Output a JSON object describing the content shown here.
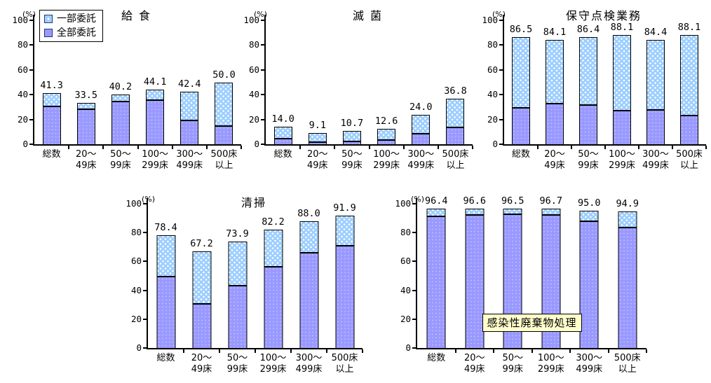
{
  "figure": {
    "background": "#FFFFFF"
  },
  "colors": {
    "partial_fill": "#9DCEFF",
    "full_fill": "#9999FF",
    "axis": "#000000",
    "label_box_fill": "#FFFFCC"
  },
  "legend": {
    "items": [
      {
        "label": "一部委託",
        "swatch_color": "#9DCEFF",
        "pattern": "white-dots"
      },
      {
        "label": "全部委託",
        "swatch_color": "#9999FF",
        "pattern": "solid"
      }
    ]
  },
  "chart_data": [
    {
      "type": "bar",
      "stacked": true,
      "title": "給 食",
      "title_style": "plain",
      "unit": "(%)",
      "ylim": [
        0,
        100
      ],
      "yticks": [
        0,
        20,
        40,
        60,
        80,
        100
      ],
      "grid": false,
      "legend_position": "top-left-first-chart-only",
      "categories": [
        [
          "総数"
        ],
        [
          "20〜",
          "49床"
        ],
        [
          "50〜",
          "99床"
        ],
        [
          "100〜",
          "299床"
        ],
        [
          "300〜",
          "499床"
        ],
        [
          "500床",
          "以上"
        ]
      ],
      "series": [
        {
          "name": "全部委託",
          "values": [
            31.5,
            29.5,
            35.3,
            36.5,
            20.0,
            15.2
          ]
        },
        {
          "name": "一部委託",
          "values": [
            9.8,
            4.0,
            4.9,
            7.6,
            22.4,
            34.8
          ]
        }
      ],
      "totals": [
        41.3,
        33.5,
        40.2,
        44.1,
        42.4,
        50.0
      ],
      "data_labels": [
        "41.3",
        "33.5",
        "40.2",
        "44.1",
        "42.4",
        "50.0"
      ]
    },
    {
      "type": "bar",
      "stacked": true,
      "title": "滅 菌",
      "title_style": "plain",
      "unit": "(%)",
      "ylim": [
        0,
        100
      ],
      "yticks": [
        0,
        20,
        40,
        60,
        80,
        100
      ],
      "grid": false,
      "categories": [
        [
          "総数"
        ],
        [
          "20〜",
          "49床"
        ],
        [
          "50〜",
          "99床"
        ],
        [
          "100〜",
          "299床"
        ],
        [
          "300〜",
          "499床"
        ],
        [
          "500床",
          "以上"
        ]
      ],
      "series": [
        {
          "name": "全部委託",
          "values": [
            5.4,
            2.3,
            3.1,
            4.3,
            9.0,
            14.1
          ]
        },
        {
          "name": "一部委託",
          "values": [
            8.6,
            6.8,
            7.6,
            8.3,
            15.0,
            22.7
          ]
        }
      ],
      "totals": [
        14.0,
        9.1,
        10.7,
        12.6,
        24.0,
        36.8
      ],
      "data_labels": [
        "14.0",
        "9.1",
        "10.7",
        "12.6",
        "24.0",
        "36.8"
      ]
    },
    {
      "type": "bar",
      "stacked": true,
      "title": "保守点検業務",
      "title_style": "plain",
      "unit": "(%)",
      "ylim": [
        0,
        100
      ],
      "yticks": [
        0,
        20,
        40,
        60,
        80,
        100
      ],
      "grid": false,
      "categories": [
        [
          "総数"
        ],
        [
          "20〜",
          "49床"
        ],
        [
          "50〜",
          "99床"
        ],
        [
          "100〜",
          "299床"
        ],
        [
          "300〜",
          "499床"
        ],
        [
          "500床",
          "以上"
        ]
      ],
      "series": [
        {
          "name": "全部委託",
          "values": [
            30.2,
            33.5,
            32.3,
            27.8,
            28.4,
            23.9
          ]
        },
        {
          "name": "一部委託",
          "values": [
            56.3,
            50.6,
            54.1,
            60.3,
            56.0,
            64.2
          ]
        }
      ],
      "totals": [
        86.5,
        84.1,
        86.4,
        88.1,
        84.4,
        88.1
      ],
      "data_labels": [
        "86.5",
        "84.1",
        "86.4",
        "88.1",
        "84.4",
        "88.1"
      ]
    },
    {
      "type": "bar",
      "stacked": true,
      "title": "清掃",
      "title_style": "plain",
      "unit": "(%)",
      "ylim": [
        0,
        100
      ],
      "yticks": [
        0,
        20,
        40,
        60,
        80,
        100
      ],
      "grid": false,
      "categories": [
        [
          "総数"
        ],
        [
          "20〜",
          "49床"
        ],
        [
          "50〜",
          "99床"
        ],
        [
          "100〜",
          "299床"
        ],
        [
          "300〜",
          "499床"
        ],
        [
          "500床",
          "以上"
        ]
      ],
      "series": [
        {
          "name": "全部委託",
          "values": [
            50.5,
            31.2,
            43.8,
            57.1,
            66.7,
            71.8
          ]
        },
        {
          "name": "一部委託",
          "values": [
            27.9,
            36.0,
            30.1,
            25.1,
            21.3,
            20.1
          ]
        }
      ],
      "totals": [
        78.4,
        67.2,
        73.9,
        82.2,
        88.0,
        91.9
      ],
      "data_labels": [
        "78.4",
        "67.2",
        "73.9",
        "82.2",
        "88.0",
        "91.9"
      ]
    },
    {
      "type": "bar",
      "stacked": true,
      "title": "感染性廃棄物処理",
      "title_style": "boxed",
      "unit": "(%)",
      "ylim": [
        0,
        100
      ],
      "yticks": [
        0,
        20,
        40,
        60,
        80,
        100
      ],
      "grid": false,
      "categories": [
        [
          "総数"
        ],
        [
          "20〜",
          "49床"
        ],
        [
          "50〜",
          "99床"
        ],
        [
          "100〜",
          "299床"
        ],
        [
          "300〜",
          "499床"
        ],
        [
          "500床",
          "以上"
        ]
      ],
      "series": [
        {
          "name": "全部委託",
          "values": [
            92.4,
            93.0,
            93.9,
            93.3,
            88.8,
            84.4
          ]
        },
        {
          "name": "一部委託",
          "values": [
            4.0,
            3.6,
            2.6,
            3.4,
            6.2,
            10.5
          ]
        }
      ],
      "totals": [
        96.4,
        96.6,
        96.5,
        96.7,
        95.0,
        94.9
      ],
      "data_labels": [
        "96.4",
        "96.6",
        "96.5",
        "96.7",
        "95.0",
        "94.9"
      ]
    }
  ]
}
